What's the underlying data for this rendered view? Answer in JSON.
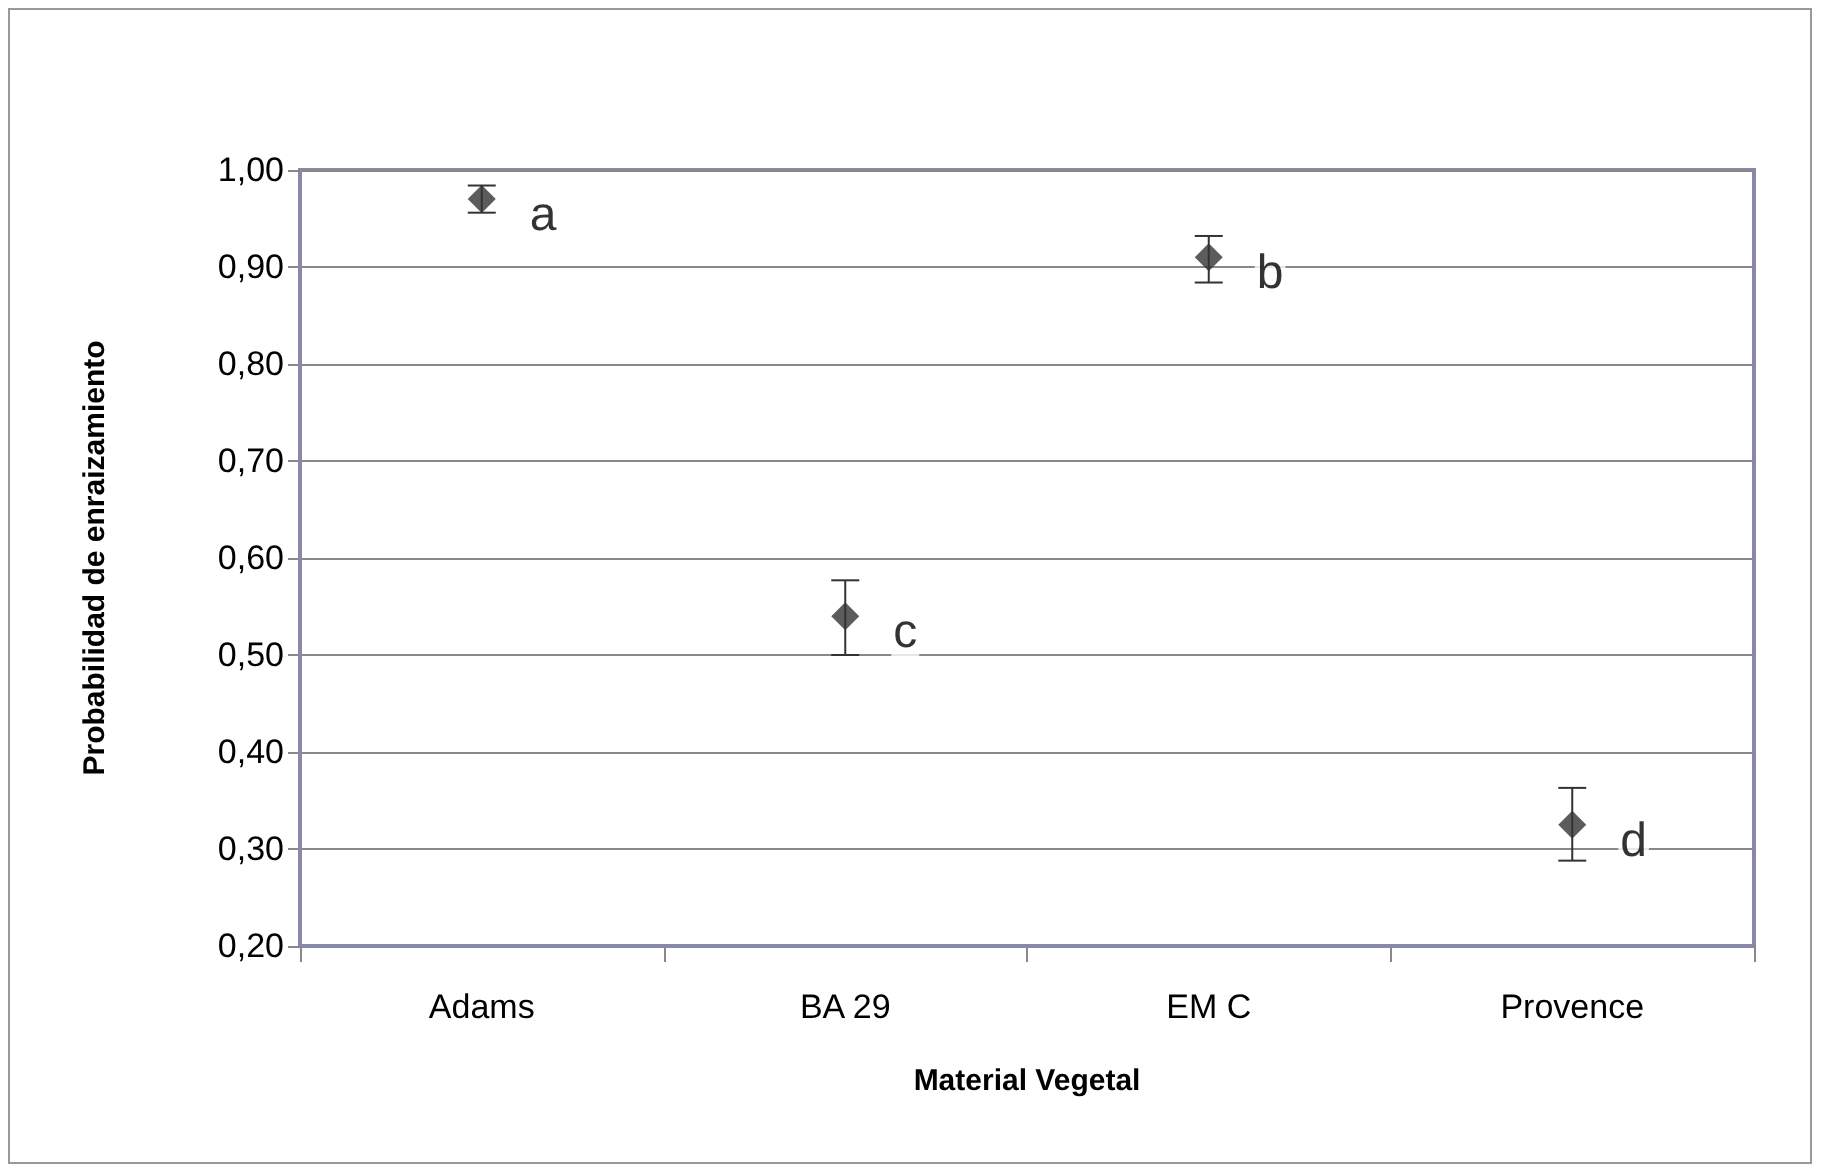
{
  "chart_data": {
    "type": "scatter",
    "xlabel": "Material Vegetal",
    "ylabel": "Probabilidad de enraizamiento",
    "categories": [
      "Adams",
      "BA 29",
      "EM C",
      "Provence"
    ],
    "series": [
      {
        "color": "#333333",
        "values": [
          0.97,
          0.54,
          0.91,
          0.325
        ],
        "errors": [
          [
            0.956,
            0.984
          ],
          [
            0.5,
            0.577
          ],
          [
            0.884,
            0.932
          ],
          [
            0.288,
            0.363
          ]
        ]
      }
    ],
    "ylim": [
      0.2,
      1.0
    ],
    "yticks": [
      {
        "value": 0.2,
        "label": "0,20"
      },
      {
        "value": 0.3,
        "label": "0,30"
      },
      {
        "value": 0.4,
        "label": "0,40"
      },
      {
        "value": 0.5,
        "label": "0,50"
      },
      {
        "value": 0.6,
        "label": "0,60"
      },
      {
        "value": 0.7,
        "label": "0,70"
      },
      {
        "value": 0.8,
        "label": "0,80"
      },
      {
        "value": 0.9,
        "label": "0,90"
      },
      {
        "value": 1.0,
        "label": "1,00"
      }
    ],
    "annotations": [
      {
        "text": "a",
        "x": "Adams",
        "y": 0.97
      },
      {
        "text": "c",
        "x": "BA 29",
        "y": 0.54
      },
      {
        "text": "b",
        "x": "EM C",
        "y": 0.91
      },
      {
        "text": "d",
        "x": "Provence",
        "y": 0.325
      }
    ],
    "grid": "y",
    "marker": "diamond"
  }
}
